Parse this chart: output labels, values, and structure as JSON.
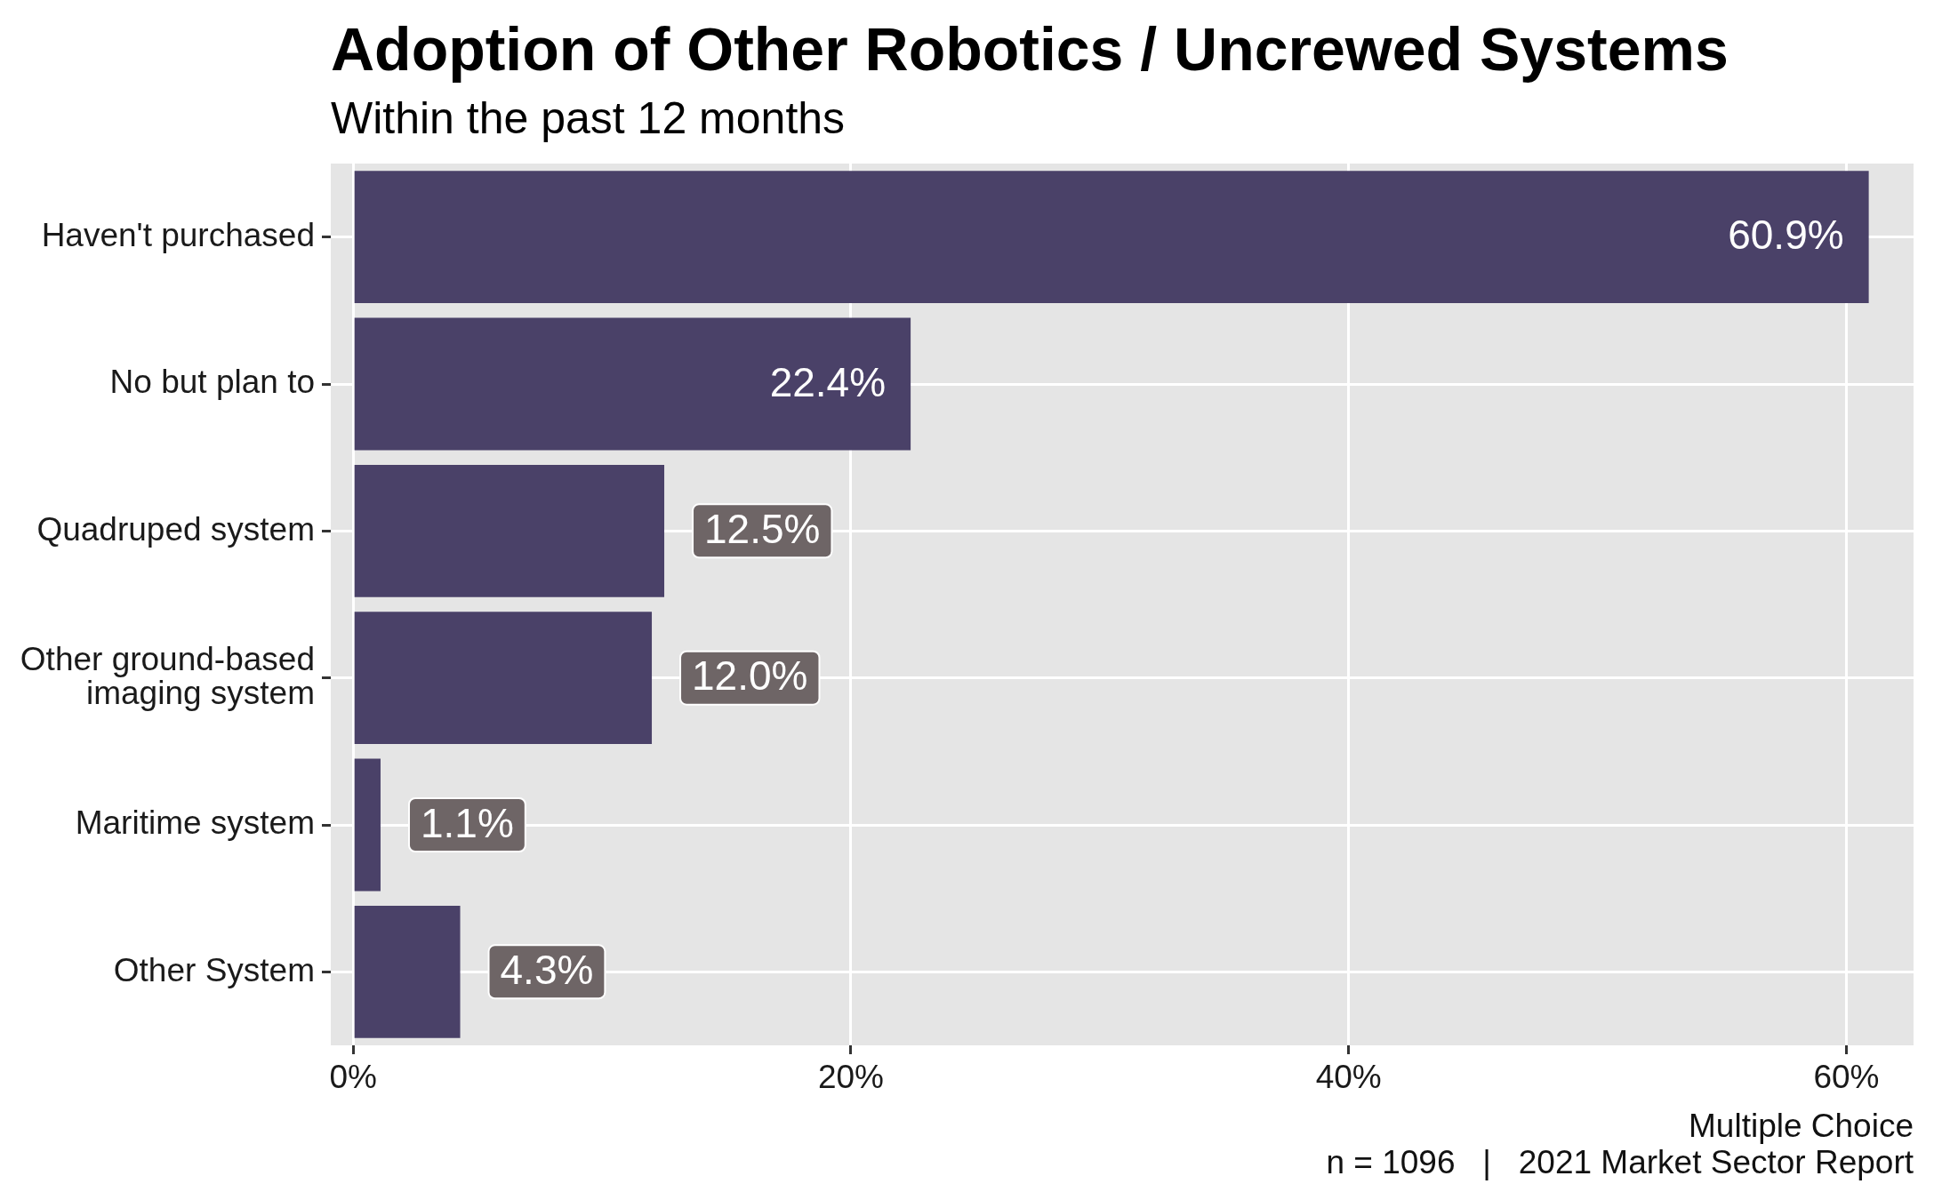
{
  "chart_data": {
    "type": "bar",
    "orientation": "horizontal",
    "title": "Adoption of Other Robotics / Uncrewed Systems",
    "subtitle": "Within the past 12 months",
    "categories": [
      "Haven't purchased",
      "No but plan to",
      "Quadruped system",
      "Other ground-based imaging system",
      "Maritime system",
      "Other System"
    ],
    "values": [
      60.9,
      22.4,
      12.5,
      12.0,
      1.1,
      4.3
    ],
    "value_labels": [
      "60.9%",
      "22.4%",
      "12.5%",
      "12.0%",
      "1.1%",
      "4.3%"
    ],
    "color": "#4a4168",
    "xlim": [
      -0.9,
      62.7
    ],
    "xticks": [
      {
        "value": 0,
        "label": "0%"
      },
      {
        "value": 20,
        "label": "20%"
      },
      {
        "value": 40,
        "label": "40%"
      },
      {
        "value": 60,
        "label": "60%"
      }
    ],
    "grid": true,
    "annotations": [
      "Multiple Choice",
      "n = 1096   |   2021 Market Sector Report"
    ]
  }
}
